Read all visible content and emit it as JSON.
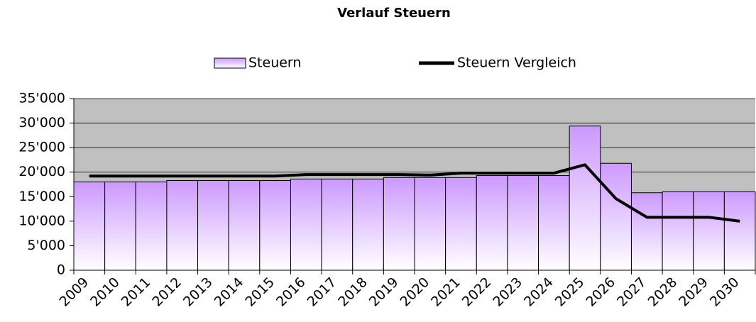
{
  "chart_data": {
    "type": "bar",
    "title": "Verlauf Steuern",
    "categories": [
      "2009",
      "2010",
      "2011",
      "2012",
      "2013",
      "2014",
      "2015",
      "2016",
      "2017",
      "2018",
      "2019",
      "2020",
      "2021",
      "2022",
      "2023",
      "2024",
      "2025",
      "2026",
      "2027",
      "2028",
      "2029",
      "2030"
    ],
    "series": [
      {
        "name": "Steuern",
        "type": "bar",
        "color": "#cc99ff",
        "values": [
          18000,
          18000,
          18000,
          18300,
          18300,
          18300,
          18300,
          18600,
          18600,
          18600,
          18900,
          18900,
          18900,
          19300,
          19300,
          19300,
          29400,
          21800,
          15800,
          16000,
          16000,
          16000
        ]
      },
      {
        "name": "Steuern Vergleich",
        "type": "line",
        "color": "#000000",
        "values": [
          19200,
          19200,
          19200,
          19200,
          19200,
          19200,
          19200,
          19500,
          19500,
          19500,
          19500,
          19400,
          19800,
          19800,
          19800,
          19800,
          21500,
          14600,
          10800,
          10800,
          10800,
          10000
        ]
      }
    ],
    "ylim": [
      0,
      35000
    ],
    "yticks": [
      0,
      {
        "value": 5000,
        "label": "5'000"
      },
      {
        "value": 10000,
        "label": "10'000"
      },
      {
        "value": 15000,
        "label": "15'000"
      },
      {
        "value": 20000,
        "label": "20'000"
      },
      {
        "value": 25000,
        "label": "25'000"
      },
      {
        "value": 30000,
        "label": "30'000"
      },
      {
        "value": 35000,
        "label": "35'000"
      }
    ],
    "grid": true,
    "legend": "top",
    "plot_background": "#c0c0c0"
  }
}
